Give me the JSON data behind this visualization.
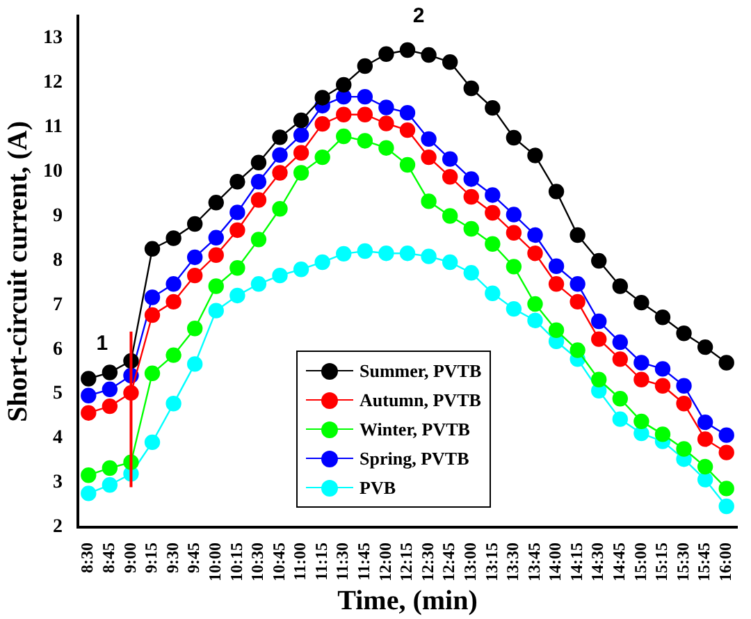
{
  "chart_data": {
    "type": "line",
    "xlabel": "Time, (min)",
    "ylabel": "Short-circuit current, (A)",
    "categories": [
      "8:30",
      "8:45",
      "9:00",
      "9:15",
      "9:30",
      "9:45",
      "10:00",
      "10:15",
      "10:30",
      "10:45",
      "11:00",
      "11:15",
      "11:30",
      "11:45",
      "12:00",
      "12:15",
      "12:30",
      "12:45",
      "13:00",
      "13:15",
      "13:30",
      "13:45",
      "14:00",
      "14:15",
      "14:30",
      "14:45",
      "15:00",
      "15:15",
      "15:30",
      "15:45",
      "16:00"
    ],
    "series": [
      {
        "name": "Summer, PVTB",
        "color": "#000000",
        "values": [
          5.34,
          5.48,
          5.74,
          8.26,
          8.5,
          8.82,
          9.3,
          9.77,
          10.2,
          10.77,
          11.15,
          11.66,
          11.95,
          12.37,
          12.64,
          12.73,
          12.62,
          12.46,
          11.87,
          11.43,
          10.76,
          10.36,
          9.55,
          8.57,
          7.99,
          7.42,
          7.05,
          6.72,
          6.36,
          6.05,
          5.7
        ]
      },
      {
        "name": "Autumn, PVTB",
        "color": "#ff0000",
        "values": [
          4.57,
          4.72,
          5.02,
          6.77,
          7.07,
          7.66,
          8.12,
          8.68,
          9.36,
          9.97,
          10.42,
          11.07,
          11.28,
          11.28,
          11.08,
          10.93,
          10.32,
          9.88,
          9.43,
          9.07,
          8.62,
          8.16,
          7.47,
          7.07,
          6.23,
          5.78,
          5.32,
          5.18,
          4.78,
          3.98,
          3.68
        ]
      },
      {
        "name": "Winter, PVTB",
        "color": "#00ff00",
        "values": [
          3.17,
          3.33,
          3.46,
          5.46,
          5.87,
          6.47,
          7.42,
          7.83,
          8.47,
          9.16,
          9.97,
          10.32,
          10.79,
          10.69,
          10.53,
          10.15,
          9.33,
          9.0,
          8.71,
          8.37,
          7.86,
          7.02,
          6.43,
          5.98,
          5.32,
          4.89,
          4.38,
          4.09,
          3.76,
          3.36,
          2.87
        ]
      },
      {
        "name": "Spring, PVTB",
        "color": "#0000ff",
        "values": [
          4.96,
          5.1,
          5.41,
          7.17,
          7.47,
          8.07,
          8.51,
          9.08,
          9.77,
          10.37,
          10.82,
          11.48,
          11.68,
          11.68,
          11.44,
          11.32,
          10.73,
          10.28,
          9.83,
          9.47,
          9.03,
          8.57,
          7.87,
          7.47,
          6.63,
          6.16,
          5.7,
          5.56,
          5.18,
          4.36,
          4.07
        ]
      },
      {
        "name": "PVB",
        "color": "#00ffff",
        "values": [
          2.76,
          2.95,
          3.2,
          3.91,
          4.78,
          5.67,
          6.87,
          7.21,
          7.47,
          7.66,
          7.8,
          7.96,
          8.15,
          8.21,
          8.16,
          8.16,
          8.09,
          7.96,
          7.72,
          7.26,
          6.91,
          6.65,
          6.18,
          5.78,
          5.07,
          4.43,
          4.11,
          3.93,
          3.53,
          3.07,
          2.47
        ]
      }
    ],
    "ylim": [
      2,
      13.5
    ],
    "yticks": [
      2,
      3,
      4,
      5,
      6,
      7,
      8,
      9,
      10,
      11,
      12,
      13
    ],
    "marker": "circle",
    "line_style": "solid",
    "grid": false,
    "legend": "bottom",
    "ref_lines": [
      {
        "axis": "x",
        "value": "9:00",
        "color": "#ff0000"
      }
    ],
    "annotations": [
      "1",
      "2"
    ]
  }
}
